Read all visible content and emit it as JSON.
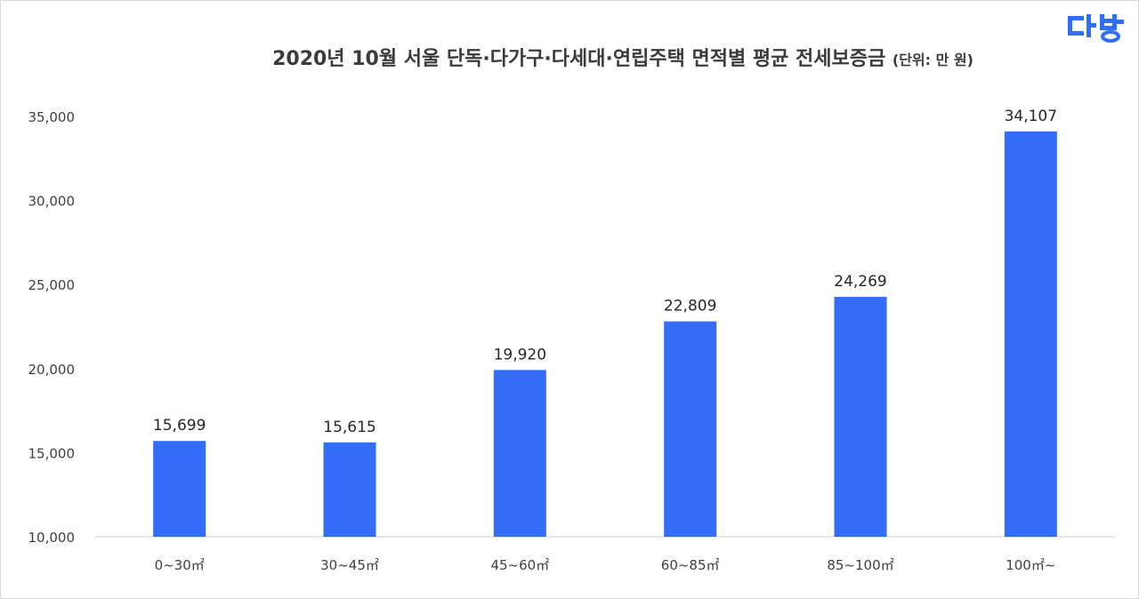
{
  "title": "2020년 10월 서울 단독·다가구·다세대·연립주택 면적별 평균 전세보증금",
  "unit_note": "(단위: 만 원)",
  "logo": {
    "icon": "dabang-logo",
    "color": "#2f6ef7"
  },
  "chart_data": {
    "type": "bar",
    "title": "2020년 10월 서울 단독·다가구·다세대·연립주택 면적별 평균 전세보증금",
    "subtitle": "(단위: 만 원)",
    "categories": [
      "0~30㎡",
      "30~45㎡",
      "45~60㎡",
      "60~85㎡",
      "85~100㎡",
      "100㎡~"
    ],
    "values": [
      15699,
      15615,
      19920,
      22809,
      24269,
      34107
    ],
    "value_labels": [
      "15,699",
      "15,615",
      "19,920",
      "22,809",
      "24,269",
      "34,107"
    ],
    "yticks": [
      10000,
      15000,
      20000,
      25000,
      30000,
      35000
    ],
    "ytick_labels": [
      "10,000",
      "15,000",
      "20,000",
      "25,000",
      "30,000",
      "35,000"
    ],
    "ylim": [
      10000,
      35000
    ],
    "xlabel": "",
    "ylabel": "",
    "grid": false,
    "bar_color": "#336cf6"
  }
}
